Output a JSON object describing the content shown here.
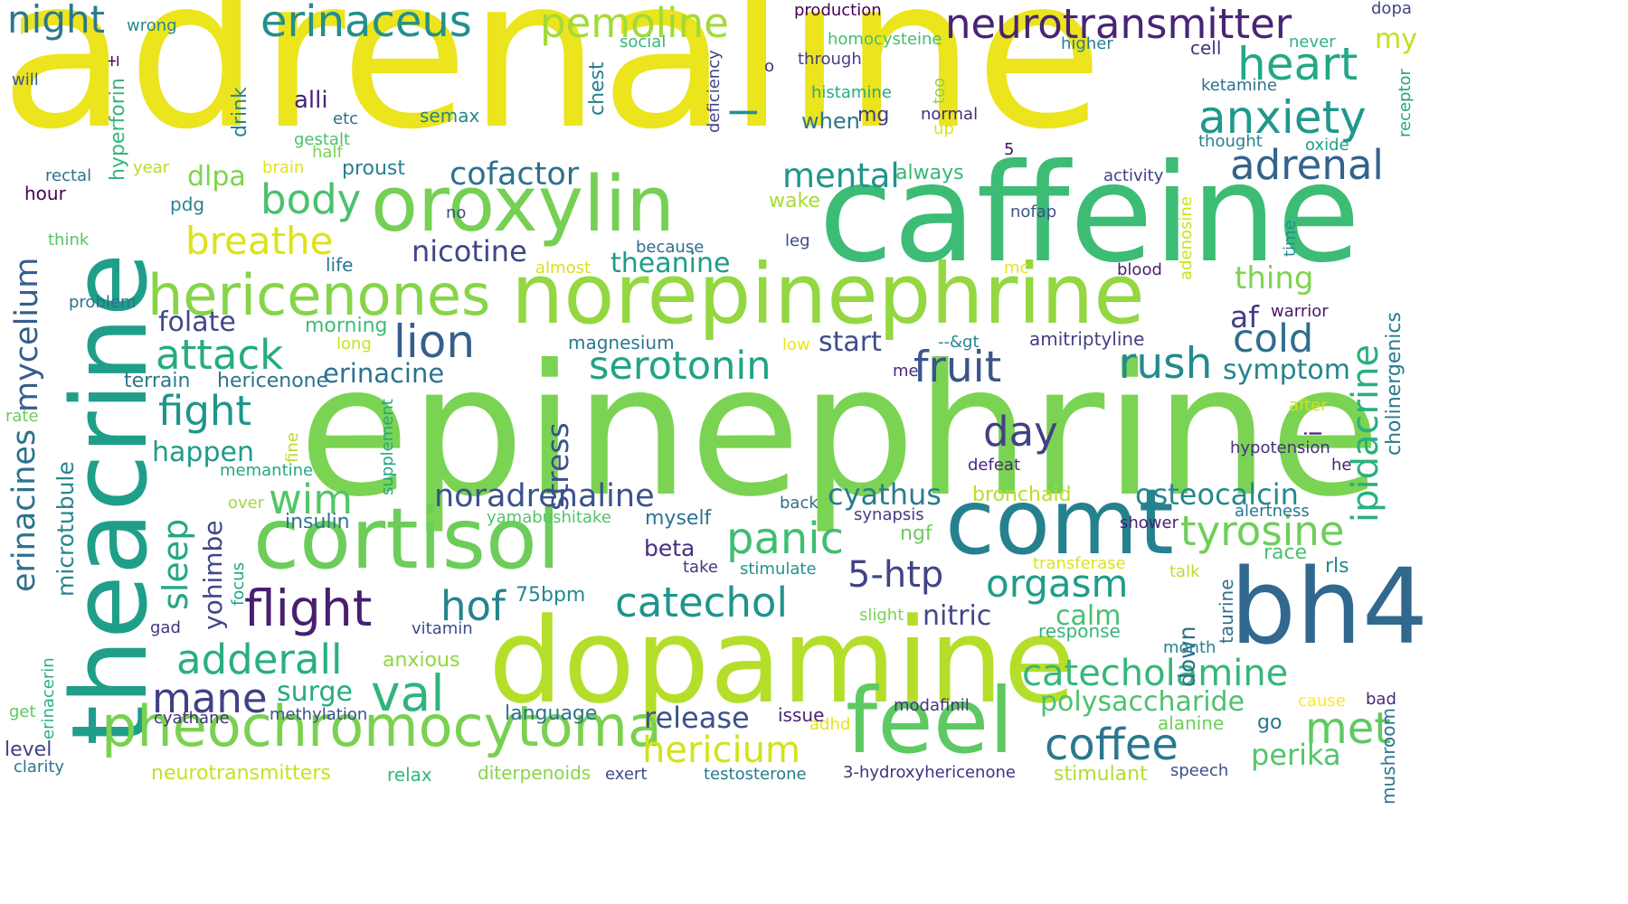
{
  "words": [
    {
      "text": "adrenaline",
      "color": "#ece41c"
    },
    {
      "text": "epinephrine",
      "color": "#7bd353"
    },
    {
      "text": "caffeine",
      "color": "#3cbc75"
    },
    {
      "text": "theacrine",
      "color": "#1f9e89"
    },
    {
      "text": "norepinephrine",
      "color": "#93d741"
    },
    {
      "text": "dopamine",
      "color": "#b5de2b"
    },
    {
      "text": "cortisol",
      "color": "#6ccd5a"
    },
    {
      "text": "comt",
      "color": "#26818e"
    },
    {
      "text": "bh4",
      "color": "#31688e"
    },
    {
      "text": "oroxylin",
      "color": "#75d054"
    },
    {
      "text": "feel",
      "color": "#5ec962"
    },
    {
      "text": "pheochromocytoma",
      "color": "#7ad151"
    },
    {
      "text": "hericenones",
      "color": "#86d549"
    },
    {
      "text": "neurotransmitter",
      "color": "#482475"
    },
    {
      "text": "erinaceus",
      "color": "#21908d"
    },
    {
      "text": "night",
      "color": "#2a788e"
    },
    {
      "text": "pemoline",
      "color": "#a2da37"
    },
    {
      "text": "heart",
      "color": "#22a884"
    },
    {
      "text": "anxiety",
      "color": "#1f988b"
    },
    {
      "text": "adrenal",
      "color": "#33628d"
    },
    {
      "text": "cofactor",
      "color": "#2d718e"
    },
    {
      "text": "body",
      "color": "#4ac16d"
    },
    {
      "text": "breathe",
      "color": "#dde318"
    },
    {
      "text": "mental",
      "color": "#1f958b"
    },
    {
      "text": "dlpa",
      "color": "#81d34d"
    },
    {
      "text": "nicotine",
      "color": "#3f4788"
    },
    {
      "text": "theanine",
      "color": "#1e9c89"
    },
    {
      "text": "lion",
      "color": "#355f8d"
    },
    {
      "text": "attack",
      "color": "#25ac82"
    },
    {
      "text": "serotonin",
      "color": "#20a386"
    },
    {
      "text": "fruit",
      "color": "#3a548c"
    },
    {
      "text": "rush",
      "color": "#238a8d"
    },
    {
      "text": "cold",
      "color": "#2e6d8e"
    },
    {
      "text": "af",
      "color": "#433e85"
    },
    {
      "text": "symptom",
      "color": "#25858e"
    },
    {
      "text": "thing",
      "color": "#7fd34e"
    },
    {
      "text": "folate",
      "color": "#3e4989"
    },
    {
      "text": "fight",
      "color": "#1f958b"
    },
    {
      "text": "happen",
      "color": "#1e9b8a"
    },
    {
      "text": "erinacine",
      "color": "#2c738e"
    },
    {
      "text": "terrain",
      "color": "#2a778e"
    },
    {
      "text": "hericenone",
      "color": "#2c728e"
    },
    {
      "text": "stress",
      "color": "#3b528b"
    },
    {
      "text": "magnesium",
      "color": "#2a788e"
    },
    {
      "text": "start",
      "color": "#3e4c8a"
    },
    {
      "text": "day",
      "color": "#424186"
    },
    {
      "text": "wim",
      "color": "#54c568"
    },
    {
      "text": "noradrenaline",
      "color": "#3b528b"
    },
    {
      "text": "cyathus",
      "color": "#287d8e"
    },
    {
      "text": "osteocalcin",
      "color": "#23888e"
    },
    {
      "text": "tyrosine",
      "color": "#6ece58"
    },
    {
      "text": "panic",
      "color": "#40bd72"
    },
    {
      "text": "flight",
      "color": "#481f70"
    },
    {
      "text": "hof",
      "color": "#25848e"
    },
    {
      "text": "catechol",
      "color": "#1f948c"
    },
    {
      "text": "5-htp",
      "color": "#404588"
    },
    {
      "text": "orgasm",
      "color": "#1e9d89"
    },
    {
      "text": "nitric",
      "color": "#3f4889"
    },
    {
      "text": "calm",
      "color": "#46c06f"
    },
    {
      "text": "beta",
      "color": "#46307e"
    },
    {
      "text": "adderall",
      "color": "#29af7f"
    },
    {
      "text": "mane",
      "color": "#424086"
    },
    {
      "text": "surge",
      "color": "#25ab82"
    },
    {
      "text": "val",
      "color": "#2fb47c"
    },
    {
      "text": "catecholamine",
      "color": "#35b779"
    },
    {
      "text": "polysaccharide",
      "color": "#4cc26c"
    },
    {
      "text": "met",
      "color": "#5ec962"
    },
    {
      "text": "release",
      "color": "#3b528b"
    },
    {
      "text": "issue",
      "color": "#482374"
    },
    {
      "text": "hericium",
      "color": "#d2e21b"
    },
    {
      "text": "coffee",
      "color": "#2a778e"
    },
    {
      "text": "perika",
      "color": "#52c569"
    },
    {
      "text": "alanine",
      "color": "#6ece58"
    },
    {
      "text": "go",
      "color": "#2b748e"
    },
    {
      "text": "amitriptyline",
      "color": "#423f85"
    },
    {
      "text": "mycelium",
      "color": "#355e8d"
    },
    {
      "text": "erinacines",
      "color": "#2c728e"
    },
    {
      "text": "microtubule",
      "color": "#24868e"
    },
    {
      "text": "sleep",
      "color": "#22a785"
    },
    {
      "text": "yohimbe",
      "color": "#3f4788"
    },
    {
      "text": "ipidacrine",
      "color": "#2ab07f"
    },
    {
      "text": "cholinergenics",
      "color": "#297a8e"
    },
    {
      "text": "hyperforin",
      "color": "#35b779"
    },
    {
      "text": "mushroom",
      "color": "#2b758e"
    },
    {
      "text": "chest",
      "color": "#277f8e"
    },
    {
      "text": "drink",
      "color": "#25838e"
    },
    {
      "text": "deficiency",
      "color": "#414487"
    },
    {
      "text": "supplement",
      "color": "#21a685"
    },
    {
      "text": "fine",
      "color": "#b8de29"
    },
    {
      "text": "focus",
      "color": "#20a386"
    },
    {
      "text": "erinacerin",
      "color": "#29af7f"
    },
    {
      "text": "down",
      "color": "#2e6e8e"
    },
    {
      "text": "taurine",
      "color": "#2d708e"
    },
    {
      "text": "receptor",
      "color": "#22a785"
    },
    {
      "text": "time",
      "color": "#21918c"
    },
    {
      "text": "adenosine",
      "color": "#c8e020"
    },
    {
      "text": "too",
      "color": "#8ed645"
    },
    {
      "text": "i",
      "color": "#482878"
    },
    {
      "text": "±",
      "color": "#450457"
    },
    {
      "text": "l",
      "color": "#20928c"
    },
    {
      "text": "wrong",
      "color": "#24878e"
    },
    {
      "text": "will",
      "color": "#38598c"
    },
    {
      "text": "production",
      "color": "#440154"
    },
    {
      "text": "homocysteine",
      "color": "#43bf71"
    },
    {
      "text": "social",
      "color": "#35b779"
    },
    {
      "text": "higher",
      "color": "#287d8e"
    },
    {
      "text": "cell",
      "color": "#46337e"
    },
    {
      "text": "never",
      "color": "#2db27d"
    },
    {
      "text": "dopa",
      "color": "#414487"
    },
    {
      "text": "my",
      "color": "#c2df23"
    },
    {
      "text": "through",
      "color": "#433e85"
    },
    {
      "text": "o",
      "color": "#46327e"
    },
    {
      "text": "histamine",
      "color": "#25ac82"
    },
    {
      "text": "ketamine",
      "color": "#2c728e"
    },
    {
      "text": "alli",
      "color": "#482475"
    },
    {
      "text": "etc",
      "color": "#2d708e"
    },
    {
      "text": "semax",
      "color": "#24868e"
    },
    {
      "text": "when",
      "color": "#2a788e"
    },
    {
      "text": "mg",
      "color": "#433d84"
    },
    {
      "text": "normal",
      "color": "#472c7a"
    },
    {
      "text": "up",
      "color": "#dae319"
    },
    {
      "text": "thought",
      "color": "#26828e"
    },
    {
      "text": "oxide",
      "color": "#1fa188"
    },
    {
      "text": "5",
      "color": "#481467"
    },
    {
      "text": "gestalt",
      "color": "#4ac16d"
    },
    {
      "text": "half",
      "color": "#7ad151"
    },
    {
      "text": "year",
      "color": "#b5de2b"
    },
    {
      "text": "brain",
      "color": "#dfe318"
    },
    {
      "text": "proust",
      "color": "#27808e"
    },
    {
      "text": "always",
      "color": "#35b779"
    },
    {
      "text": "activity",
      "color": "#424086"
    },
    {
      "text": "rectal",
      "color": "#2c728e"
    },
    {
      "text": "hour",
      "color": "#440154"
    },
    {
      "text": "pdg",
      "color": "#24868e"
    },
    {
      "text": "no",
      "color": "#3b528b"
    },
    {
      "text": "wake",
      "color": "#a8db34"
    },
    {
      "text": "nofap",
      "color": "#3b528b"
    },
    {
      "text": "think",
      "color": "#56c667"
    },
    {
      "text": "because",
      "color": "#2e6f8e"
    },
    {
      "text": "leg",
      "color": "#3e4a89"
    },
    {
      "text": "life",
      "color": "#2b758e"
    },
    {
      "text": "almost",
      "color": "#d8e219"
    },
    {
      "text": "mc",
      "color": "#e7e419"
    },
    {
      "text": "blood",
      "color": "#481d6f"
    },
    {
      "text": "problem",
      "color": "#2d718e"
    },
    {
      "text": "warrior",
      "color": "#481769"
    },
    {
      "text": "morning",
      "color": "#3cbc75"
    },
    {
      "text": "long",
      "color": "#cae11f"
    },
    {
      "text": "low",
      "color": "#ece51b"
    },
    {
      "text": "--&gt",
      "color": "#24878e"
    },
    {
      "text": "me",
      "color": "#472d7b"
    },
    {
      "text": "after",
      "color": "#d0e11c"
    },
    {
      "text": "rate",
      "color": "#6ccd5a"
    },
    {
      "text": "hypotension",
      "color": "#46307e"
    },
    {
      "text": "defeat",
      "color": "#472a7a"
    },
    {
      "text": "he",
      "color": "#482576"
    },
    {
      "text": "memantine",
      "color": "#22a884"
    },
    {
      "text": "bronchaid",
      "color": "#b8de29"
    },
    {
      "text": "over",
      "color": "#9fda3a"
    },
    {
      "text": "insulin",
      "color": "#2b758e"
    },
    {
      "text": "yamabushitake",
      "color": "#50c46a"
    },
    {
      "text": "myself",
      "color": "#2c728e"
    },
    {
      "text": "back",
      "color": "#2d708e"
    },
    {
      "text": "synapsis",
      "color": "#443a83"
    },
    {
      "text": "alertness",
      "color": "#2a768e"
    },
    {
      "text": "shower",
      "color": "#482172"
    },
    {
      "text": "ngf",
      "color": "#6ccd5a"
    },
    {
      "text": "transferase",
      "color": "#dde318"
    },
    {
      "text": "race",
      "color": "#4ac16d"
    },
    {
      "text": "take",
      "color": "#453882"
    },
    {
      "text": "stimulate",
      "color": "#21918c"
    },
    {
      "text": "talk",
      "color": "#bade28"
    },
    {
      "text": "rls",
      "color": "#24868e"
    },
    {
      "text": "75bpm",
      "color": "#23898e"
    },
    {
      "text": "slight",
      "color": "#7ad151"
    },
    {
      "text": "response",
      "color": "#35b779"
    },
    {
      "text": "month",
      "color": "#27808e"
    },
    {
      "text": "gad",
      "color": "#46337e"
    },
    {
      "text": "vitamin",
      "color": "#3e4c8a"
    },
    {
      "text": "anxious",
      "color": "#90d743"
    },
    {
      "text": "get",
      "color": "#5ec962"
    },
    {
      "text": "cyathane",
      "color": "#46327e"
    },
    {
      "text": "methylation",
      "color": "#3b528b"
    },
    {
      "text": "language",
      "color": "#2c738e"
    },
    {
      "text": "modafinil",
      "color": "#46337e"
    },
    {
      "text": "adhd",
      "color": "#e5e419"
    },
    {
      "text": "cause",
      "color": "#fde725"
    },
    {
      "text": "bad",
      "color": "#482878"
    },
    {
      "text": "level",
      "color": "#424186"
    },
    {
      "text": "clarity",
      "color": "#2a778e"
    },
    {
      "text": "neurotransmitters",
      "color": "#c8e020"
    },
    {
      "text": "relax",
      "color": "#35b779"
    },
    {
      "text": "diterpenoids",
      "color": "#86d549"
    },
    {
      "text": "exert",
      "color": "#3e4a89"
    },
    {
      "text": "testosterone",
      "color": "#287c8e"
    },
    {
      "text": "3-hydroxyhericenone",
      "color": "#46307e"
    },
    {
      "text": "stimulant",
      "color": "#b0dd2f"
    },
    {
      "text": "speech",
      "color": "#3b528b"
    }
  ]
}
